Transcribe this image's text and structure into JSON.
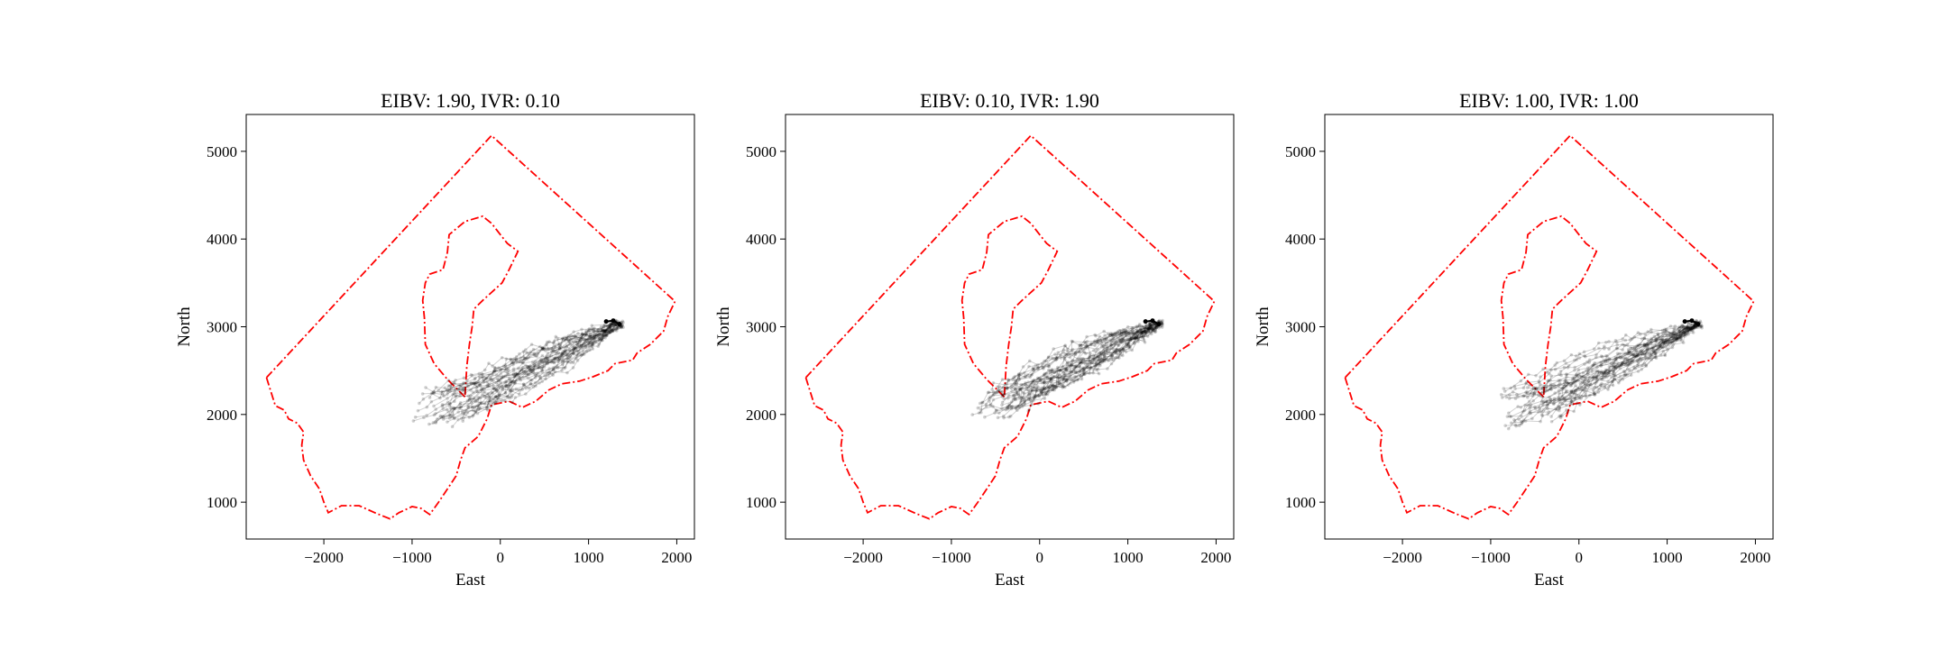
{
  "figure": {
    "panels": [
      {
        "title": "EIBV: 1.90, IVR: 0.10",
        "xlabel": "East",
        "ylabel": "North",
        "xlim": [
          -2880,
          2200
        ],
        "ylim": [
          580,
          5420
        ],
        "xticks": [
          -2000,
          -1000,
          0,
          1000,
          2000
        ],
        "xtick_labels": [
          "−2000",
          "−1000",
          "0",
          "1000",
          "2000"
        ],
        "yticks": [
          1000,
          2000,
          3000,
          4000,
          5000
        ],
        "ytick_labels": [
          "1000",
          "2000",
          "3000",
          "4000",
          "5000"
        ],
        "paths_end": [
          1350,
          3030
        ],
        "cluster": {
          "x": -600,
          "y": 2100
        }
      },
      {
        "title": "EIBV: 0.10, IVR: 1.90",
        "xlabel": "East",
        "ylabel": "North",
        "xlim": [
          -2880,
          2200
        ],
        "ylim": [
          580,
          5420
        ],
        "xticks": [
          -2000,
          -1000,
          0,
          1000,
          2000
        ],
        "xtick_labels": [
          "−2000",
          "−1000",
          "0",
          "1000",
          "2000"
        ],
        "yticks": [
          1000,
          2000,
          3000,
          4000,
          5000
        ],
        "ytick_labels": [
          "1000",
          "2000",
          "3000",
          "4000",
          "5000"
        ],
        "paths_end": [
          1350,
          3030
        ],
        "cluster": {
          "x": -400,
          "y": 2150
        }
      },
      {
        "title": "EIBV: 1.00, IVR: 1.00",
        "xlabel": "East",
        "ylabel": "North",
        "xlim": [
          -2880,
          2200
        ],
        "ylim": [
          580,
          5420
        ],
        "xticks": [
          -2000,
          -1000,
          0,
          1000,
          2000
        ],
        "xtick_labels": [
          "−2000",
          "−1000",
          "0",
          "1000",
          "2000"
        ],
        "yticks": [
          1000,
          2000,
          3000,
          4000,
          5000
        ],
        "ytick_labels": [
          "1000",
          "2000",
          "3000",
          "4000",
          "5000"
        ],
        "paths_end": [
          1350,
          3030
        ],
        "cluster": {
          "x": -580,
          "y": 2080
        }
      }
    ]
  },
  "chart_data": {
    "type": "line",
    "boundary": {
      "color": "#ff0000",
      "style": "dash-dot",
      "outer_polygon": [
        [
          -2650,
          2420
        ],
        [
          -100,
          5180
        ],
        [
          1980,
          3290
        ],
        [
          1900,
          3120
        ],
        [
          1850,
          2950
        ],
        [
          1700,
          2800
        ],
        [
          1550,
          2700
        ],
        [
          1500,
          2620
        ],
        [
          1300,
          2580
        ],
        [
          1220,
          2500
        ],
        [
          1050,
          2430
        ],
        [
          900,
          2380
        ],
        [
          700,
          2350
        ],
        [
          550,
          2280
        ],
        [
          400,
          2150
        ],
        [
          250,
          2080
        ],
        [
          100,
          2150
        ],
        [
          -100,
          2110
        ],
        [
          -150,
          1950
        ],
        [
          -250,
          1750
        ],
        [
          -400,
          1620
        ],
        [
          -450,
          1480
        ],
        [
          -500,
          1300
        ],
        [
          -600,
          1150
        ],
        [
          -700,
          1000
        ],
        [
          -800,
          860
        ],
        [
          -900,
          930
        ],
        [
          -1000,
          950
        ],
        [
          -1150,
          880
        ],
        [
          -1250,
          810
        ],
        [
          -1400,
          870
        ],
        [
          -1600,
          960
        ],
        [
          -1800,
          960
        ],
        [
          -1950,
          880
        ],
        [
          -2000,
          1000
        ],
        [
          -2050,
          1150
        ],
        [
          -2150,
          1300
        ],
        [
          -2230,
          1480
        ],
        [
          -2250,
          1650
        ],
        [
          -2230,
          1800
        ],
        [
          -2300,
          1900
        ],
        [
          -2400,
          1950
        ],
        [
          -2450,
          2050
        ],
        [
          -2550,
          2100
        ],
        [
          -2650,
          2420
        ]
      ],
      "inner_polygon": [
        [
          -400,
          2200
        ],
        [
          -600,
          2400
        ],
        [
          -750,
          2580
        ],
        [
          -850,
          2800
        ],
        [
          -860,
          3100
        ],
        [
          -880,
          3300
        ],
        [
          -850,
          3500
        ],
        [
          -800,
          3600
        ],
        [
          -650,
          3650
        ],
        [
          -600,
          3850
        ],
        [
          -580,
          4050
        ],
        [
          -400,
          4200
        ],
        [
          -200,
          4260
        ],
        [
          -100,
          4180
        ],
        [
          0,
          4050
        ],
        [
          80,
          3950
        ],
        [
          200,
          3860
        ],
        [
          100,
          3650
        ],
        [
          20,
          3500
        ],
        [
          -200,
          3300
        ],
        [
          -300,
          3200
        ],
        [
          -320,
          3000
        ],
        [
          -350,
          2800
        ],
        [
          -380,
          2550
        ],
        [
          -400,
          2200
        ]
      ]
    },
    "series": [
      {
        "type": "trajectories",
        "color": "#000000",
        "alpha": 0.2
      },
      {
        "type": "start-path",
        "color": "#000000",
        "values": [
          [
            1200,
            3060
          ],
          [
            1280,
            3070
          ],
          [
            1350,
            3030
          ]
        ]
      }
    ]
  }
}
